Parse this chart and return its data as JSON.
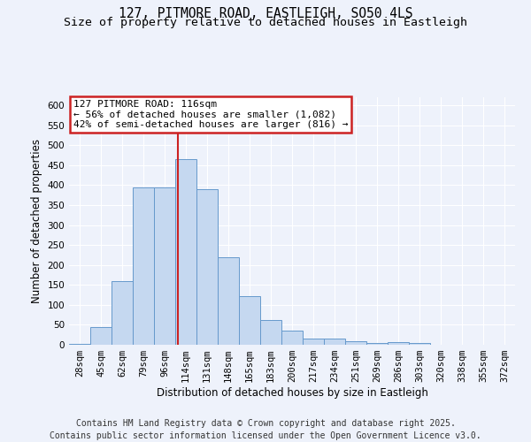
{
  "title1": "127, PITMORE ROAD, EASTLEIGH, SO50 4LS",
  "title2": "Size of property relative to detached houses in Eastleigh",
  "xlabel": "Distribution of detached houses by size in Eastleigh",
  "ylabel": "Number of detached properties",
  "bar_labels": [
    "28sqm",
    "45sqm",
    "62sqm",
    "79sqm",
    "96sqm",
    "114sqm",
    "131sqm",
    "148sqm",
    "165sqm",
    "183sqm",
    "200sqm",
    "217sqm",
    "234sqm",
    "251sqm",
    "269sqm",
    "286sqm",
    "303sqm",
    "320sqm",
    "338sqm",
    "355sqm",
    "372sqm"
  ],
  "bar_values": [
    3,
    45,
    160,
    395,
    395,
    465,
    390,
    220,
    122,
    62,
    35,
    15,
    15,
    9,
    5,
    6,
    5,
    1,
    1,
    1,
    1
  ],
  "bar_color": "#c5d8f0",
  "bar_edge_color": "#6699cc",
  "background_color": "#eef2fb",
  "grid_color": "#ffffff",
  "annotation_text": "127 PITMORE ROAD: 116sqm\n← 56% of detached houses are smaller (1,082)\n42% of semi-detached houses are larger (816) →",
  "annotation_box_color": "#ffffff",
  "annotation_box_edge": "#cc2222",
  "vline_x": 4.62,
  "vline_color": "#cc2222",
  "ylim": [
    0,
    620
  ],
  "yticks": [
    0,
    50,
    100,
    150,
    200,
    250,
    300,
    350,
    400,
    450,
    500,
    550,
    600
  ],
  "footer": "Contains HM Land Registry data © Crown copyright and database right 2025.\nContains public sector information licensed under the Open Government Licence v3.0.",
  "title_fontsize": 10.5,
  "subtitle_fontsize": 9.5,
  "axis_label_fontsize": 8.5,
  "tick_fontsize": 7.5,
  "annot_fontsize": 8,
  "footer_fontsize": 7
}
